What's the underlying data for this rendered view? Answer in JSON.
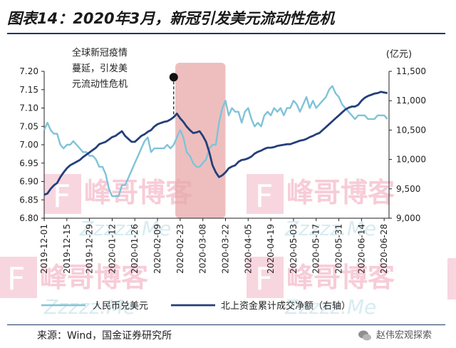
{
  "title": "图表14：2020年3月，新冠引发美元流动性危机",
  "source": "来源：Wind，国金证券研究所",
  "brand_watermark": "赵伟宏观探索",
  "watermarks": {
    "logo": "峰哥博客",
    "url": "Zzzzz.Me"
  },
  "colors": {
    "left_series": "#7fc3d8",
    "right_series": "#243f7a",
    "shade": "#e8a8a8",
    "accent": "#1f3864"
  },
  "chart_data": {
    "type": "line",
    "title": "图表14：2020年3月，新冠引发美元流动性危机",
    "x_tick_labels": [
      "2019-12-01",
      "2019-12-15",
      "2019-12-29",
      "2020-01-12",
      "2020-01-26",
      "2020-02-09",
      "2020-02-23",
      "2020-03-08",
      "2020-03-22",
      "2020-04-05",
      "2020-04-19",
      "2020-05-03",
      "2020-05-17",
      "2020-05-31",
      "2020-06-14",
      "2020-06-28"
    ],
    "x_range": [
      "2019-12-01",
      "2020-07-01"
    ],
    "y_left": {
      "ticks": [
        "6.80",
        "6.85",
        "6.90",
        "6.95",
        "7.00",
        "7.05",
        "7.10",
        "7.15",
        "7.20"
      ],
      "range": [
        6.8,
        7.2
      ]
    },
    "y_right": {
      "unit": "(亿元)",
      "ticks": [
        "9,000",
        "9,500",
        "10,000",
        "10,500",
        "11,000",
        "11,500"
      ],
      "range": [
        9000,
        11500
      ]
    },
    "shaded_period": [
      "2020-02-20",
      "2020-03-22"
    ],
    "annotation": {
      "lines": [
        "全球新冠疫情",
        "蔓延，引发美",
        "元流动性危机"
      ],
      "marker_date": "2020-02-19",
      "marker_value": 11400
    },
    "legend_position": "bottom",
    "grid": false,
    "series": [
      {
        "name": "人民币兑美元",
        "axis": "left",
        "points": [
          [
            "2019-12-01",
            7.04
          ],
          [
            "2019-12-03",
            7.06
          ],
          [
            "2019-12-05",
            7.04
          ],
          [
            "2019-12-07",
            7.03
          ],
          [
            "2019-12-09",
            7.03
          ],
          [
            "2019-12-11",
            7.0
          ],
          [
            "2019-12-13",
            6.99
          ],
          [
            "2019-12-15",
            7.0
          ],
          [
            "2019-12-17",
            7.0
          ],
          [
            "2019-12-19",
            7.01
          ],
          [
            "2019-12-21",
            7.0
          ],
          [
            "2019-12-23",
            6.99
          ],
          [
            "2019-12-25",
            6.98
          ],
          [
            "2019-12-27",
            6.98
          ],
          [
            "2019-12-29",
            6.97
          ],
          [
            "2019-12-31",
            6.97
          ],
          [
            "2020-01-02",
            6.96
          ],
          [
            "2020-01-04",
            6.94
          ],
          [
            "2020-01-06",
            6.94
          ],
          [
            "2020-01-08",
            6.92
          ],
          [
            "2020-01-10",
            6.88
          ],
          [
            "2020-01-12",
            6.86
          ],
          [
            "2020-01-14",
            6.86
          ],
          [
            "2020-01-16",
            6.86
          ],
          [
            "2020-01-18",
            6.89
          ],
          [
            "2020-01-20",
            6.89
          ],
          [
            "2020-01-22",
            6.91
          ],
          [
            "2020-01-24",
            6.93
          ],
          [
            "2020-01-26",
            6.95
          ],
          [
            "2020-01-28",
            6.97
          ],
          [
            "2020-01-30",
            6.99
          ],
          [
            "2020-02-01",
            7.01
          ],
          [
            "2020-02-03",
            7.02
          ],
          [
            "2020-02-05",
            6.98
          ],
          [
            "2020-02-07",
            6.99
          ],
          [
            "2020-02-09",
            6.99
          ],
          [
            "2020-02-11",
            6.99
          ],
          [
            "2020-02-13",
            6.99
          ],
          [
            "2020-02-15",
            7.0
          ],
          [
            "2020-02-17",
            6.99
          ],
          [
            "2020-02-19",
            7.0
          ],
          [
            "2020-02-21",
            7.02
          ],
          [
            "2020-02-23",
            7.04
          ],
          [
            "2020-02-25",
            7.02
          ],
          [
            "2020-02-27",
            6.98
          ],
          [
            "2020-02-29",
            6.97
          ],
          [
            "2020-03-02",
            6.95
          ],
          [
            "2020-03-04",
            6.94
          ],
          [
            "2020-03-06",
            6.94
          ],
          [
            "2020-03-08",
            6.95
          ],
          [
            "2020-03-10",
            6.96
          ],
          [
            "2020-03-12",
            6.99
          ],
          [
            "2020-03-14",
            7.0
          ],
          [
            "2020-03-16",
            7.0
          ],
          [
            "2020-03-18",
            7.06
          ],
          [
            "2020-03-20",
            7.1
          ],
          [
            "2020-03-22",
            7.12
          ],
          [
            "2020-03-24",
            7.08
          ],
          [
            "2020-03-26",
            7.1
          ],
          [
            "2020-03-28",
            7.09
          ],
          [
            "2020-03-30",
            7.09
          ],
          [
            "2020-04-01",
            7.06
          ],
          [
            "2020-04-03",
            7.09
          ],
          [
            "2020-04-05",
            7.1
          ],
          [
            "2020-04-07",
            7.07
          ],
          [
            "2020-04-09",
            7.05
          ],
          [
            "2020-04-11",
            7.06
          ],
          [
            "2020-04-13",
            7.05
          ],
          [
            "2020-04-15",
            7.08
          ],
          [
            "2020-04-17",
            7.09
          ],
          [
            "2020-04-19",
            7.08
          ],
          [
            "2020-04-21",
            7.1
          ],
          [
            "2020-04-23",
            7.09
          ],
          [
            "2020-04-25",
            7.1
          ],
          [
            "2020-04-27",
            7.08
          ],
          [
            "2020-04-29",
            7.1
          ],
          [
            "2020-05-01",
            7.1
          ],
          [
            "2020-05-03",
            7.12
          ],
          [
            "2020-05-05",
            7.11
          ],
          [
            "2020-05-07",
            7.09
          ],
          [
            "2020-05-09",
            7.11
          ],
          [
            "2020-05-11",
            7.13
          ],
          [
            "2020-05-13",
            7.1
          ],
          [
            "2020-05-15",
            7.12
          ],
          [
            "2020-05-17",
            7.1
          ],
          [
            "2020-05-19",
            7.11
          ],
          [
            "2020-05-21",
            7.12
          ],
          [
            "2020-05-23",
            7.13
          ],
          [
            "2020-05-25",
            7.15
          ],
          [
            "2020-05-27",
            7.16
          ],
          [
            "2020-05-29",
            7.14
          ],
          [
            "2020-05-31",
            7.13
          ],
          [
            "2020-06-02",
            7.11
          ],
          [
            "2020-06-04",
            7.1
          ],
          [
            "2020-06-06",
            7.09
          ],
          [
            "2020-06-08",
            7.08
          ],
          [
            "2020-06-10",
            7.07
          ],
          [
            "2020-06-12",
            7.08
          ],
          [
            "2020-06-14",
            7.08
          ],
          [
            "2020-06-16",
            7.08
          ],
          [
            "2020-06-18",
            7.07
          ],
          [
            "2020-06-20",
            7.07
          ],
          [
            "2020-06-22",
            7.07
          ],
          [
            "2020-06-24",
            7.08
          ],
          [
            "2020-06-26",
            7.08
          ],
          [
            "2020-06-28",
            7.08
          ],
          [
            "2020-06-30",
            7.07
          ]
        ]
      },
      {
        "name": "北上资金累计成交净额（右轴）",
        "axis": "right",
        "points": [
          [
            "2019-12-01",
            9400
          ],
          [
            "2019-12-03",
            9420
          ],
          [
            "2019-12-05",
            9500
          ],
          [
            "2019-12-07",
            9560
          ],
          [
            "2019-12-09",
            9600
          ],
          [
            "2019-12-11",
            9700
          ],
          [
            "2019-12-13",
            9780
          ],
          [
            "2019-12-15",
            9850
          ],
          [
            "2019-12-17",
            9900
          ],
          [
            "2019-12-19",
            9930
          ],
          [
            "2019-12-21",
            9960
          ],
          [
            "2019-12-23",
            9990
          ],
          [
            "2019-12-25",
            10040
          ],
          [
            "2019-12-27",
            10080
          ],
          [
            "2019-12-29",
            10120
          ],
          [
            "2019-12-31",
            10160
          ],
          [
            "2020-01-02",
            10200
          ],
          [
            "2020-01-04",
            10260
          ],
          [
            "2020-01-06",
            10280
          ],
          [
            "2020-01-08",
            10300
          ],
          [
            "2020-01-10",
            10340
          ],
          [
            "2020-01-12",
            10380
          ],
          [
            "2020-01-14",
            10400
          ],
          [
            "2020-01-16",
            10440
          ],
          [
            "2020-01-18",
            10480
          ],
          [
            "2020-01-20",
            10400
          ],
          [
            "2020-01-22",
            10350
          ],
          [
            "2020-01-24",
            10300
          ],
          [
            "2020-01-26",
            10300
          ],
          [
            "2020-01-28",
            10350
          ],
          [
            "2020-01-30",
            10400
          ],
          [
            "2020-02-01",
            10430
          ],
          [
            "2020-02-03",
            10470
          ],
          [
            "2020-02-05",
            10500
          ],
          [
            "2020-02-07",
            10560
          ],
          [
            "2020-02-09",
            10600
          ],
          [
            "2020-02-11",
            10620
          ],
          [
            "2020-02-13",
            10640
          ],
          [
            "2020-02-15",
            10650
          ],
          [
            "2020-02-17",
            10680
          ],
          [
            "2020-02-19",
            10720
          ],
          [
            "2020-02-21",
            10780
          ],
          [
            "2020-02-23",
            10700
          ],
          [
            "2020-02-25",
            10640
          ],
          [
            "2020-02-27",
            10560
          ],
          [
            "2020-02-29",
            10500
          ],
          [
            "2020-03-02",
            10450
          ],
          [
            "2020-03-04",
            10460
          ],
          [
            "2020-03-06",
            10480
          ],
          [
            "2020-03-08",
            10400
          ],
          [
            "2020-03-10",
            10300
          ],
          [
            "2020-03-12",
            10120
          ],
          [
            "2020-03-14",
            9900
          ],
          [
            "2020-03-16",
            9780
          ],
          [
            "2020-03-18",
            9700
          ],
          [
            "2020-03-20",
            9730
          ],
          [
            "2020-03-22",
            9780
          ],
          [
            "2020-03-24",
            9850
          ],
          [
            "2020-03-26",
            9880
          ],
          [
            "2020-03-28",
            9900
          ],
          [
            "2020-03-30",
            9960
          ],
          [
            "2020-04-01",
            9990
          ],
          [
            "2020-04-03",
            10000
          ],
          [
            "2020-04-05",
            10020
          ],
          [
            "2020-04-07",
            10050
          ],
          [
            "2020-04-09",
            10100
          ],
          [
            "2020-04-11",
            10130
          ],
          [
            "2020-04-13",
            10150
          ],
          [
            "2020-04-15",
            10180
          ],
          [
            "2020-04-17",
            10200
          ],
          [
            "2020-04-19",
            10200
          ],
          [
            "2020-04-21",
            10210
          ],
          [
            "2020-04-23",
            10230
          ],
          [
            "2020-04-25",
            10240
          ],
          [
            "2020-04-27",
            10250
          ],
          [
            "2020-04-29",
            10260
          ],
          [
            "2020-05-01",
            10260
          ],
          [
            "2020-05-03",
            10280
          ],
          [
            "2020-05-05",
            10300
          ],
          [
            "2020-05-07",
            10320
          ],
          [
            "2020-05-09",
            10330
          ],
          [
            "2020-05-11",
            10350
          ],
          [
            "2020-05-13",
            10380
          ],
          [
            "2020-05-15",
            10400
          ],
          [
            "2020-05-17",
            10430
          ],
          [
            "2020-05-19",
            10450
          ],
          [
            "2020-05-21",
            10500
          ],
          [
            "2020-05-23",
            10550
          ],
          [
            "2020-05-25",
            10600
          ],
          [
            "2020-05-27",
            10650
          ],
          [
            "2020-05-29",
            10700
          ],
          [
            "2020-05-31",
            10750
          ],
          [
            "2020-06-02",
            10800
          ],
          [
            "2020-06-04",
            10850
          ],
          [
            "2020-06-06",
            10880
          ],
          [
            "2020-06-08",
            10900
          ],
          [
            "2020-06-10",
            10900
          ],
          [
            "2020-06-12",
            10930
          ],
          [
            "2020-06-14",
            11000
          ],
          [
            "2020-06-16",
            11050
          ],
          [
            "2020-06-18",
            11080
          ],
          [
            "2020-06-20",
            11100
          ],
          [
            "2020-06-22",
            11120
          ],
          [
            "2020-06-24",
            11130
          ],
          [
            "2020-06-26",
            11150
          ],
          [
            "2020-06-28",
            11140
          ],
          [
            "2020-06-30",
            11130
          ]
        ]
      }
    ]
  }
}
